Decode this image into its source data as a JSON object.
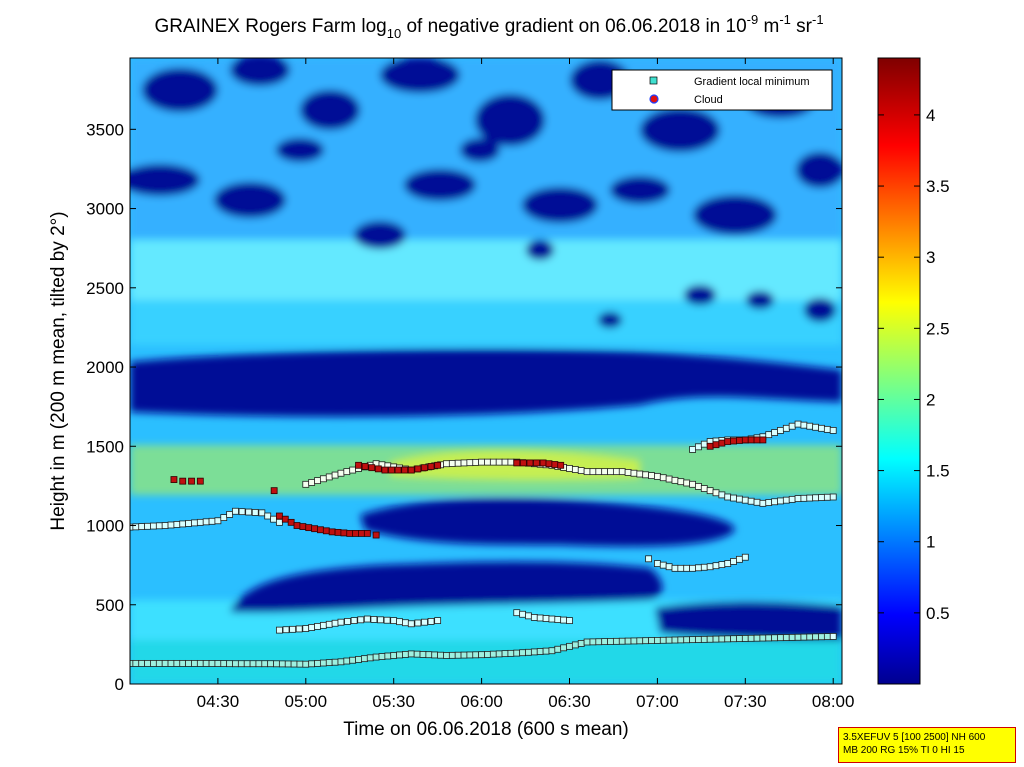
{
  "title": {
    "part1": "GRAINEX Rogers Farm log",
    "sub": "10",
    "part2": " of negative gradient on 06.06.2018 in 10",
    "sup1": "-9",
    "part3": " m",
    "sup2": "-1",
    "part4": " sr",
    "sup3": "-1"
  },
  "info_box": {
    "line1": "3.5XEFUV 5 [100 2500] NH 600",
    "line2": "MB 200 RG 15% TI 0 HI 15"
  },
  "chart_data": {
    "type": "heatmap",
    "xlabel": "Time on 06.06.2018 (600 s mean)",
    "ylabel": "Height in m (200 m mean, tilted by 2°)",
    "x_range_hours": [
      4.0,
      8.05
    ],
    "xlim": [
      "04:00",
      "08:03"
    ],
    "ylim": [
      0,
      3950
    ],
    "x_ticks": [
      {
        "value": 4.5,
        "label": "04:30"
      },
      {
        "value": 5.0,
        "label": "05:00"
      },
      {
        "value": 5.5,
        "label": "05:30"
      },
      {
        "value": 6.0,
        "label": "06:00"
      },
      {
        "value": 6.5,
        "label": "06:30"
      },
      {
        "value": 7.0,
        "label": "07:00"
      },
      {
        "value": 7.5,
        "label": "07:30"
      },
      {
        "value": 8.0,
        "label": "08:00"
      }
    ],
    "y_ticks": [
      {
        "value": 0,
        "label": "0"
      },
      {
        "value": 500,
        "label": "500"
      },
      {
        "value": 1000,
        "label": "1000"
      },
      {
        "value": 1500,
        "label": "1500"
      },
      {
        "value": 2000,
        "label": "2000"
      },
      {
        "value": 2500,
        "label": "2500"
      },
      {
        "value": 3000,
        "label": "3000"
      },
      {
        "value": 3500,
        "label": "3500"
      }
    ],
    "colorbar": {
      "colormap": "jet",
      "range": [
        0,
        4.4
      ],
      "ticks": [
        {
          "value": 0.5,
          "label": "0.5"
        },
        {
          "value": 1,
          "label": "1"
        },
        {
          "value": 1.5,
          "label": "1.5"
        },
        {
          "value": 2,
          "label": "2"
        },
        {
          "value": 2.5,
          "label": "2.5"
        },
        {
          "value": 3,
          "label": "3"
        },
        {
          "value": 3.5,
          "label": "3.5"
        },
        {
          "value": 4,
          "label": "4"
        }
      ]
    },
    "legend": {
      "placement": "top-right",
      "entries": [
        {
          "label": "Gradient local minimum",
          "marker": "square",
          "color": "#40e0d0"
        },
        {
          "label": "Cloud",
          "marker": "circle",
          "color": "#e01010",
          "edge": "#2040ff"
        }
      ]
    },
    "field_layers": [
      {
        "feature": "near-surface weak gradient band",
        "heights": [
          0,
          500
        ],
        "value": 1.6
      },
      {
        "feature": "strong low-gradient layer",
        "heights": [
          500,
          1150
        ],
        "value": 0.05
      },
      {
        "feature": "boundary layer top (yellow)",
        "heights": [
          1250,
          1550
        ],
        "value": 2.1
      },
      {
        "feature": "dark gap layer",
        "heights": [
          1700,
          2100
        ],
        "value": 0.05
      },
      {
        "feature": "upper mixed layer",
        "heights": [
          2100,
          3000
        ],
        "value": 1.5
      },
      {
        "feature": "upper patchy region",
        "heights": [
          3000,
          3950
        ],
        "value": 0.8
      }
    ],
    "series": [
      {
        "name": "Gradient local minimum",
        "tracks": [
          {
            "x": [
              4.0,
              4.2,
              4.4,
              4.6,
              4.8,
              5.0,
              5.2,
              5.4,
              5.6,
              5.8,
              6.0,
              6.2,
              6.4,
              6.6,
              6.8,
              7.0,
              7.2,
              7.4,
              7.6,
              7.8,
              8.0
            ],
            "y": [
              130,
              130,
              130,
              128,
              128,
              125,
              140,
              170,
              190,
              180,
              185,
              195,
              210,
              265,
              270,
              275,
              280,
              285,
              290,
              295,
              300
            ]
          },
          {
            "x": [
              4.0,
              4.2,
              4.4,
              4.5,
              4.6,
              4.75,
              4.85
            ],
            "y": [
              990,
              1000,
              1020,
              1030,
              1090,
              1080,
              1020
            ]
          },
          {
            "x": [
              5.0,
              5.2,
              5.4,
              5.6,
              5.8,
              6.0,
              6.2,
              6.4,
              6.6,
              6.8,
              7.0,
              7.2,
              7.4,
              7.6,
              7.8,
              8.0
            ],
            "y": [
              1260,
              1330,
              1390,
              1350,
              1390,
              1400,
              1400,
              1380,
              1340,
              1340,
              1310,
              1260,
              1180,
              1140,
              1170,
              1180
            ]
          },
          {
            "x": [
              7.2,
              7.3,
              7.4,
              7.5,
              7.6,
              7.7,
              7.8,
              7.9,
              8.0
            ],
            "y": [
              1480,
              1530,
              1540,
              1540,
              1560,
              1600,
              1640,
              1620,
              1600
            ]
          },
          {
            "x": [
              4.85,
              5.0,
              5.2,
              5.35,
              5.5,
              5.6,
              5.75
            ],
            "y": [
              340,
              350,
              390,
              410,
              400,
              380,
              400
            ]
          },
          {
            "x": [
              6.2,
              6.3,
              6.4,
              6.5
            ],
            "y": [
              450,
              420,
              410,
              400
            ]
          },
          {
            "x": [
              6.95,
              7.0,
              7.1,
              7.2,
              7.3,
              7.4,
              7.5
            ],
            "y": [
              790,
              760,
              730,
              730,
              740,
              760,
              800
            ]
          }
        ]
      },
      {
        "name": "Cloud",
        "tracks": [
          {
            "x": [
              4.25,
              4.3,
              4.35,
              4.4
            ],
            "y": [
              1290,
              1280,
              1280,
              1280
            ]
          },
          {
            "x": [
              4.82
            ],
            "y": [
              1220
            ]
          },
          {
            "x": [
              4.85,
              4.95,
              5.05,
              5.15,
              5.25,
              5.35,
              5.4
            ],
            "y": [
              1060,
              1000,
              980,
              960,
              950,
              950,
              940
            ]
          },
          {
            "x": [
              5.3,
              5.45,
              5.6,
              5.75
            ],
            "y": [
              1380,
              1350,
              1350,
              1380
            ]
          },
          {
            "x": [
              6.2,
              6.35,
              6.45
            ],
            "y": [
              1395,
              1395,
              1380
            ]
          },
          {
            "x": [
              7.3,
              7.4,
              7.5,
              7.6
            ],
            "y": [
              1500,
              1530,
              1540,
              1540
            ]
          }
        ]
      }
    ]
  }
}
